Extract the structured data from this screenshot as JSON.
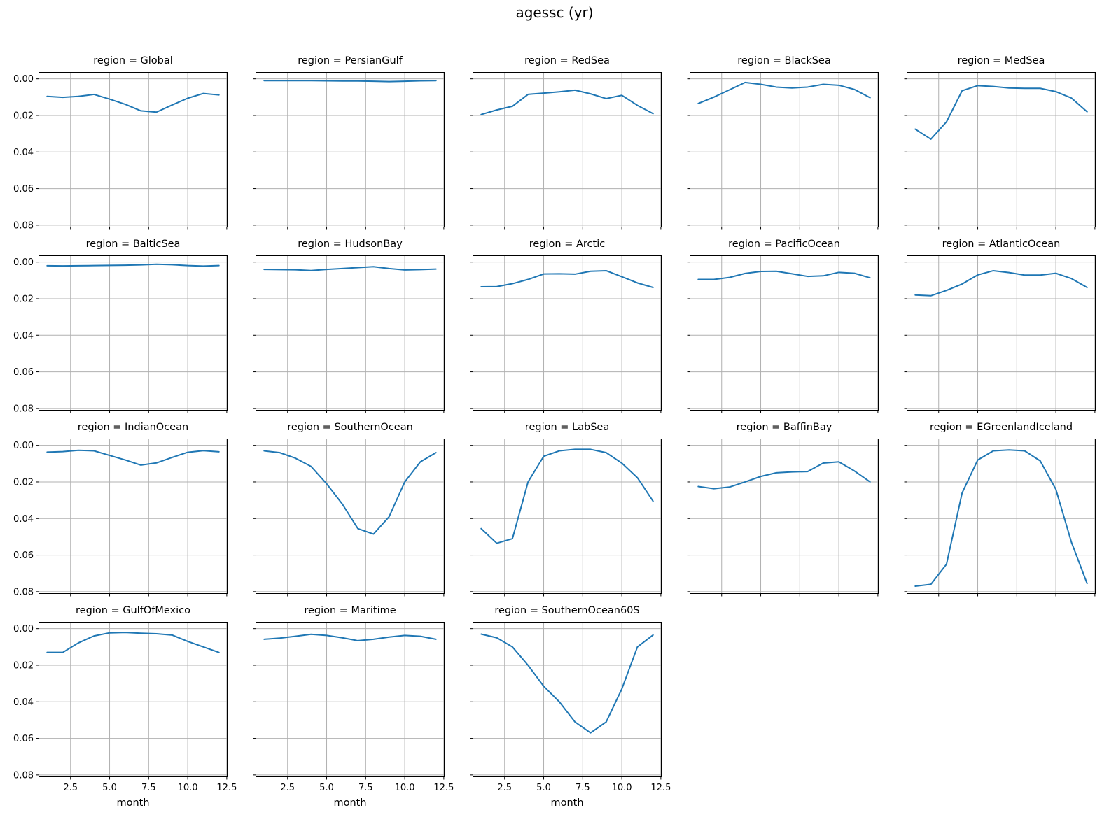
{
  "title": "agessc (yr)",
  "colors": {
    "line": "#1f77b4",
    "grid": "#b0b0b0",
    "axis": "#000000",
    "background": "#ffffff"
  },
  "layout": {
    "rows": 4,
    "cols": 5,
    "legend": "none",
    "grid_on": true
  },
  "axes": {
    "xlabel": "month",
    "xticks": [
      2.5,
      5.0,
      7.5,
      10.0,
      12.5
    ],
    "xtick_labels": [
      "2.5",
      "5.0",
      "7.5",
      "10.0",
      "12.5"
    ],
    "yticks": [
      0.0,
      0.02,
      0.04,
      0.06,
      0.08
    ],
    "ytick_labels": [
      "0.00",
      "0.02",
      "0.04",
      "0.06",
      "0.08"
    ],
    "xlim": [
      0.45,
      12.55
    ],
    "ylim": [
      0.0812,
      -0.0037
    ],
    "y_axis_inverted": true
  },
  "chart_data": [
    {
      "type": "line",
      "region": "Global",
      "title": "region = Global",
      "x": [
        1,
        2,
        3,
        4,
        5,
        6,
        7,
        8,
        9,
        10,
        11,
        12
      ],
      "values": [
        0.0096,
        0.0101,
        0.0096,
        0.0085,
        0.0111,
        0.0139,
        0.0175,
        0.0182,
        0.0143,
        0.0106,
        0.008,
        0.0088
      ]
    },
    {
      "type": "line",
      "region": "PersianGulf",
      "title": "region = PersianGulf",
      "x": [
        1,
        2,
        3,
        4,
        5,
        6,
        7,
        8,
        9,
        10,
        11,
        12
      ],
      "values": [
        0.001,
        0.001,
        0.001,
        0.001,
        0.0011,
        0.0012,
        0.0012,
        0.0013,
        0.0015,
        0.0013,
        0.0011,
        0.001
      ]
    },
    {
      "type": "line",
      "region": "RedSea",
      "title": "region = RedSea",
      "x": [
        1,
        2,
        3,
        4,
        5,
        6,
        7,
        8,
        9,
        10,
        11,
        12
      ],
      "values": [
        0.0195,
        0.017,
        0.015,
        0.0085,
        0.0078,
        0.0071,
        0.0062,
        0.0082,
        0.0108,
        0.009,
        0.0145,
        0.019
      ]
    },
    {
      "type": "line",
      "region": "BlackSea",
      "title": "region = BlackSea",
      "x": [
        1,
        2,
        3,
        4,
        5,
        6,
        7,
        8,
        9,
        10,
        11,
        12
      ],
      "values": [
        0.0135,
        0.01,
        0.006,
        0.002,
        0.003,
        0.0045,
        0.005,
        0.0045,
        0.003,
        0.0035,
        0.0058,
        0.0103
      ]
    },
    {
      "type": "line",
      "region": "MedSea",
      "title": "region = MedSea",
      "x": [
        1,
        2,
        3,
        4,
        5,
        6,
        7,
        8,
        9,
        10,
        11,
        12
      ],
      "values": [
        0.0275,
        0.033,
        0.0235,
        0.0065,
        0.0037,
        0.0042,
        0.005,
        0.0052,
        0.0052,
        0.007,
        0.0105,
        0.018
      ]
    },
    {
      "type": "line",
      "region": "BalticSea",
      "title": "region = BalticSea",
      "x": [
        1,
        2,
        3,
        4,
        5,
        6,
        7,
        8,
        9,
        10,
        11,
        12
      ],
      "values": [
        0.002,
        0.0021,
        0.002,
        0.0019,
        0.0018,
        0.0017,
        0.0015,
        0.0012,
        0.0014,
        0.0019,
        0.0022,
        0.0019
      ]
    },
    {
      "type": "line",
      "region": "HudsonBay",
      "title": "region = HudsonBay",
      "x": [
        1,
        2,
        3,
        4,
        5,
        6,
        7,
        8,
        9,
        10,
        11,
        12
      ],
      "values": [
        0.004,
        0.0041,
        0.0042,
        0.0046,
        0.004,
        0.0035,
        0.003,
        0.0025,
        0.0035,
        0.0043,
        0.0041,
        0.0038
      ]
    },
    {
      "type": "line",
      "region": "Arctic",
      "title": "region = Arctic",
      "x": [
        1,
        2,
        3,
        4,
        5,
        6,
        7,
        8,
        9,
        10,
        11,
        12
      ],
      "values": [
        0.0135,
        0.0134,
        0.0118,
        0.0095,
        0.0065,
        0.0064,
        0.0066,
        0.005,
        0.0047,
        0.008,
        0.0114,
        0.0139
      ]
    },
    {
      "type": "line",
      "region": "PacificOcean",
      "title": "region = PacificOcean",
      "x": [
        1,
        2,
        3,
        4,
        5,
        6,
        7,
        8,
        9,
        10,
        11,
        12
      ],
      "values": [
        0.0095,
        0.0095,
        0.0084,
        0.0062,
        0.0051,
        0.005,
        0.0064,
        0.0078,
        0.0075,
        0.0056,
        0.0061,
        0.0086
      ]
    },
    {
      "type": "line",
      "region": "AtlanticOcean",
      "title": "region = AtlanticOcean",
      "x": [
        1,
        2,
        3,
        4,
        5,
        6,
        7,
        8,
        9,
        10,
        11,
        12
      ],
      "values": [
        0.018,
        0.0184,
        0.0155,
        0.012,
        0.007,
        0.0047,
        0.0057,
        0.0071,
        0.0071,
        0.0061,
        0.009,
        0.0139
      ]
    },
    {
      "type": "line",
      "region": "IndianOcean",
      "title": "region = IndianOcean",
      "x": [
        1,
        2,
        3,
        4,
        5,
        6,
        7,
        8,
        9,
        10,
        11,
        12
      ],
      "values": [
        0.0037,
        0.0034,
        0.0027,
        0.003,
        0.0055,
        0.008,
        0.0108,
        0.0096,
        0.0066,
        0.0038,
        0.0029,
        0.0035
      ]
    },
    {
      "type": "line",
      "region": "SouthernOcean",
      "title": "region = SouthernOcean",
      "x": [
        1,
        2,
        3,
        4,
        5,
        6,
        7,
        8,
        9,
        10,
        11,
        12
      ],
      "values": [
        0.003,
        0.004,
        0.007,
        0.0115,
        0.021,
        0.032,
        0.0455,
        0.0485,
        0.039,
        0.02,
        0.009,
        0.004
      ]
    },
    {
      "type": "line",
      "region": "LabSea",
      "title": "region = LabSea",
      "x": [
        1,
        2,
        3,
        4,
        5,
        6,
        7,
        8,
        9,
        10,
        11,
        12
      ],
      "values": [
        0.0455,
        0.0535,
        0.051,
        0.02,
        0.006,
        0.003,
        0.0022,
        0.0022,
        0.004,
        0.0097,
        0.0177,
        0.0305
      ]
    },
    {
      "type": "line",
      "region": "BaffinBay",
      "title": "region = BaffinBay",
      "x": [
        1,
        2,
        3,
        4,
        5,
        6,
        7,
        8,
        9,
        10,
        11,
        12
      ],
      "values": [
        0.0225,
        0.0237,
        0.0228,
        0.02,
        0.017,
        0.015,
        0.0145,
        0.0143,
        0.0097,
        0.009,
        0.014,
        0.02
      ]
    },
    {
      "type": "line",
      "region": "EGreenlandIceland",
      "title": "region = EGreenlandIceland",
      "x": [
        1,
        2,
        3,
        4,
        5,
        6,
        7,
        8,
        9,
        10,
        11,
        12
      ],
      "values": [
        0.077,
        0.076,
        0.065,
        0.026,
        0.008,
        0.003,
        0.0025,
        0.003,
        0.0085,
        0.024,
        0.053,
        0.0755
      ]
    },
    {
      "type": "line",
      "region": "GulfOfMexico",
      "title": "region = GulfOfMexico",
      "x": [
        1,
        2,
        3,
        4,
        5,
        6,
        7,
        8,
        9,
        10,
        11,
        12
      ],
      "values": [
        0.013,
        0.013,
        0.0078,
        0.004,
        0.0023,
        0.0021,
        0.0025,
        0.0028,
        0.0035,
        0.007,
        0.01,
        0.013
      ]
    },
    {
      "type": "line",
      "region": "Maritime",
      "title": "region = Maritime",
      "x": [
        1,
        2,
        3,
        4,
        5,
        6,
        7,
        8,
        9,
        10,
        11,
        12
      ],
      "values": [
        0.0058,
        0.0052,
        0.0042,
        0.0031,
        0.0037,
        0.005,
        0.0066,
        0.0058,
        0.0046,
        0.0037,
        0.0042,
        0.0058
      ]
    },
    {
      "type": "line",
      "region": "SouthernOcean60S",
      "title": "region = SouthernOcean60S",
      "x": [
        1,
        2,
        3,
        4,
        5,
        6,
        7,
        8,
        9,
        10,
        11,
        12
      ],
      "values": [
        0.003,
        0.005,
        0.01,
        0.02,
        0.0315,
        0.04,
        0.051,
        0.057,
        0.051,
        0.033,
        0.01,
        0.0035
      ]
    }
  ]
}
